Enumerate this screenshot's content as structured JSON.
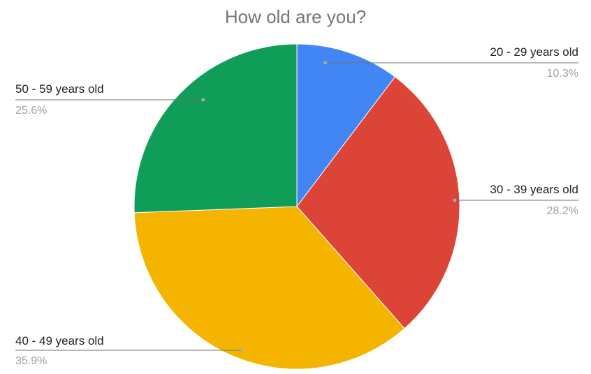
{
  "chart_data": {
    "type": "pie",
    "title": "How old are you?",
    "slices": [
      {
        "label": "20 - 29 years old",
        "value": 10.3,
        "value_label": "10.3%",
        "color": "#4285F4"
      },
      {
        "label": "30 - 39 years old",
        "value": 28.2,
        "value_label": "28.2%",
        "color": "#DB4437"
      },
      {
        "label": "40 - 49 years old",
        "value": 35.9,
        "value_label": "35.9%",
        "color": "#F4B400"
      },
      {
        "label": "50 - 59 years old",
        "value": 25.6,
        "value_label": "25.6%",
        "color": "#0F9D58"
      }
    ],
    "start_angle_deg": 0,
    "direction": "clockwise",
    "legend": "none"
  }
}
